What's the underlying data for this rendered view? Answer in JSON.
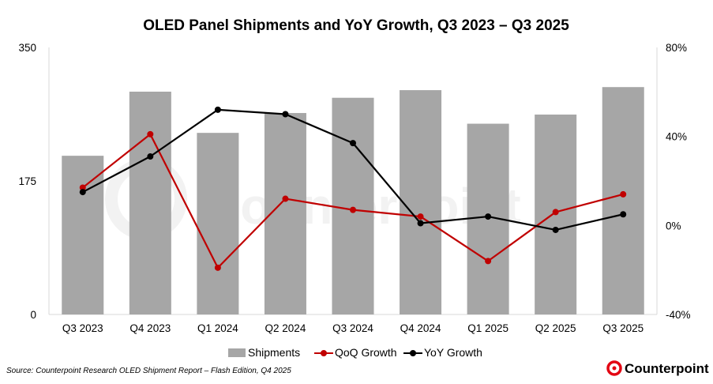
{
  "chart_data": {
    "type": "bar+line",
    "title": "OLED Panel Shipments and YoY Growth, Q3 2023 – Q3 2025",
    "categories": [
      "Q3 2023",
      "Q4 2023",
      "Q1 2024",
      "Q2 2024",
      "Q3 2024",
      "Q4 2024",
      "Q1 2025",
      "Q2 2025",
      "Q3 2025"
    ],
    "y_left": {
      "min": 0,
      "max": 350,
      "ticks": [
        0,
        175,
        350
      ],
      "tick_labels": [
        "0",
        "175",
        "350"
      ]
    },
    "y_right": {
      "min": -40,
      "max": 80,
      "ticks": [
        -40,
        0,
        40,
        80
      ],
      "tick_labels": [
        "-40%",
        "0%",
        "40%",
        "80%"
      ]
    },
    "series": [
      {
        "name": "Shipments",
        "kind": "bar",
        "axis": "left",
        "color": "#a6a6a6",
        "values": [
          208,
          292,
          238,
          264,
          284,
          294,
          250,
          262,
          298
        ]
      },
      {
        "name": "QoQ Growth",
        "kind": "line",
        "axis": "right",
        "color": "#c00000",
        "values": [
          17,
          41,
          -19,
          12,
          7,
          4,
          -16,
          6,
          14
        ]
      },
      {
        "name": "YoY Growth",
        "kind": "line",
        "axis": "right",
        "color": "#000000",
        "values": [
          15,
          31,
          52,
          50,
          37,
          1,
          4,
          -2,
          5
        ]
      }
    ],
    "legend_position": "bottom"
  },
  "source": "Source: Counterpoint Research  OLED Shipment Report – Flash Edition, Q4 2025",
  "brand": {
    "name": "Counterpoint",
    "color": "#e30613"
  },
  "watermark": "Counterpoint"
}
